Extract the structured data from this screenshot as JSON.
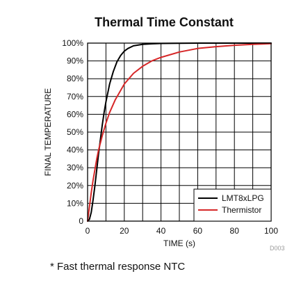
{
  "chart_data": {
    "type": "line",
    "title": "Thermal Time Constant",
    "xlabel": "TIME (s)",
    "ylabel": "FINAL TEMPERATURE",
    "xlim": [
      0,
      100
    ],
    "ylim": [
      0,
      100
    ],
    "x_ticks": [
      "0",
      "20",
      "40",
      "60",
      "80",
      "100"
    ],
    "y_ticks": [
      "0",
      "10%",
      "20%",
      "30%",
      "40%",
      "50%",
      "60%",
      "70%",
      "80%",
      "90%",
      "100%"
    ],
    "grid": true,
    "legend_position": "bottom-right",
    "series": [
      {
        "name": "LMT8xLPG",
        "color": "#000000",
        "x": [
          0,
          1,
          2,
          3,
          4,
          5,
          6,
          7,
          8,
          9,
          10,
          11,
          12,
          14,
          16,
          18,
          20,
          22,
          25,
          30,
          35,
          40,
          50,
          60,
          80,
          100
        ],
        "y": [
          0,
          1,
          5,
          12,
          20,
          29,
          38,
          46,
          54,
          61,
          67,
          72,
          77,
          84,
          89.5,
          93,
          95.5,
          97,
          98.5,
          99.3,
          99.6,
          99.8,
          99.9,
          100,
          100,
          100
        ]
      },
      {
        "name": "Thermistor",
        "color": "#d62728",
        "x": [
          0,
          1,
          2,
          3,
          4,
          5,
          6,
          8,
          10,
          12,
          15,
          20,
          25,
          30,
          35,
          40,
          50,
          60,
          70,
          80,
          90,
          100
        ],
        "y": [
          0,
          8,
          16,
          23,
          29,
          35,
          40,
          48,
          55,
          61,
          68,
          77,
          83,
          87,
          90,
          92,
          95,
          97,
          98,
          98.8,
          99.3,
          99.7
        ]
      }
    ]
  },
  "figure_code": "D003",
  "footnote": "* Fast thermal response NTC"
}
